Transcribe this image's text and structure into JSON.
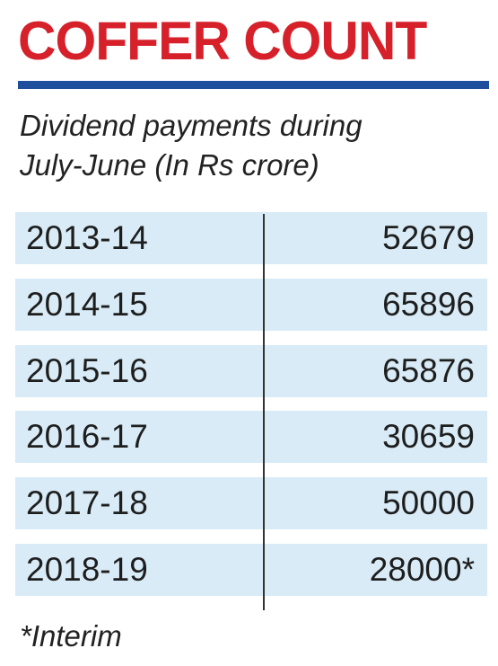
{
  "header": {
    "title": "COFFER COUNT",
    "subtitle_line1": "Dividend payments during",
    "subtitle_line2": "July-June (In Rs crore)"
  },
  "chart_data": {
    "type": "table",
    "title": "COFFER COUNT",
    "subtitle": "Dividend payments during July-June (In Rs crore)",
    "rows": [
      {
        "year": "2013-14",
        "value": 52679,
        "display": "52679"
      },
      {
        "year": "2014-15",
        "value": 65896,
        "display": "65896"
      },
      {
        "year": "2015-16",
        "value": 65876,
        "display": "65876"
      },
      {
        "year": "2016-17",
        "value": 30659,
        "display": "30659"
      },
      {
        "year": "2017-18",
        "value": 50000,
        "display": "50000"
      },
      {
        "year": "2018-19",
        "value": 28000,
        "display": "28000*"
      }
    ]
  },
  "footnote": "*Interim",
  "colors": {
    "title": "#d6202a",
    "rule": "#1f4e9c",
    "row_fill": "#d8ebf6"
  }
}
